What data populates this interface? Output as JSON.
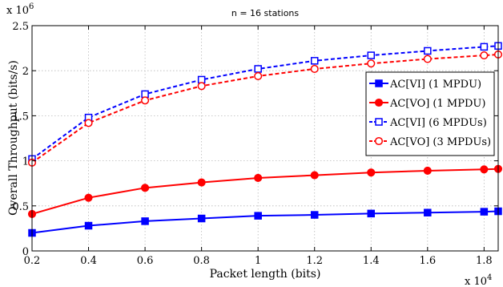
{
  "chart_data": {
    "type": "line",
    "title": "n = 16 stations",
    "xlabel": "Packet length (bits)",
    "ylabel": "Overall Throughput (bits/s)",
    "x_multiplier": "x 10",
    "x_multiplier_exp": "4",
    "y_multiplier": "x 10",
    "y_multiplier_exp": "6",
    "xlim": [
      0.2,
      1.85
    ],
    "ylim": [
      0,
      2.5
    ],
    "x_ticks": [
      "0.2",
      "0.4",
      "0.6",
      "0.8",
      "1",
      "1.2",
      "1.4",
      "1.6",
      "1.8"
    ],
    "y_ticks": [
      "0",
      "0.5",
      "1",
      "1.5",
      "2",
      "2.5"
    ],
    "grid": true,
    "legend_position": "center-right",
    "x": [
      0.2,
      0.4,
      0.6,
      0.8,
      1.0,
      1.2,
      1.4,
      1.6,
      1.8,
      1.85
    ],
    "series": [
      {
        "name": "AC[VI] (1 MPDU)",
        "color": "#0000ff",
        "marker": "square-filled",
        "line": "solid",
        "values": [
          0.2,
          0.28,
          0.33,
          0.36,
          0.39,
          0.4,
          0.415,
          0.425,
          0.435,
          0.44
        ]
      },
      {
        "name": "AC[VO] (1 MPDU)",
        "color": "#ff0000",
        "marker": "circle-filled",
        "line": "solid",
        "values": [
          0.41,
          0.59,
          0.7,
          0.76,
          0.81,
          0.84,
          0.87,
          0.89,
          0.905,
          0.91
        ]
      },
      {
        "name": "AC[VI] (6 MPDUs)",
        "color": "#0000ff",
        "marker": "square-open",
        "line": "dashed",
        "values": [
          1.02,
          1.48,
          1.74,
          1.9,
          2.02,
          2.11,
          2.17,
          2.22,
          2.265,
          2.275
        ]
      },
      {
        "name": "AC[VO] (3 MPDUs)",
        "color": "#ff0000",
        "marker": "circle-open",
        "line": "dashed",
        "values": [
          0.98,
          1.42,
          1.67,
          1.83,
          1.94,
          2.02,
          2.08,
          2.13,
          2.17,
          2.18
        ]
      }
    ]
  }
}
